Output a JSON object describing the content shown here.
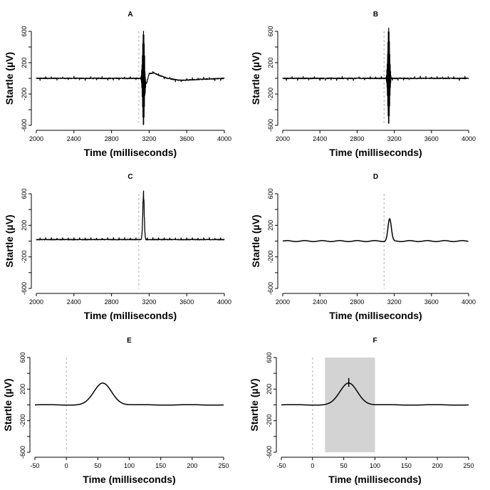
{
  "chart_data": [
    {
      "panel": "A",
      "title": "A",
      "type": "line",
      "xlabel": "Time (milliseconds)",
      "ylabel": "Startle (µV)",
      "xlim": [
        2000,
        4000
      ],
      "ylim": [
        -600,
        600
      ],
      "xticks": [
        "2000",
        "2400",
        "2800",
        "3200",
        "3600",
        "4000"
      ],
      "yticks": [
        "-600",
        "-200",
        "200",
        "600"
      ],
      "stimulus_marker_x": 3090,
      "signal": "raw",
      "burst_center": 3140,
      "burst_peak": 600,
      "burst_trough": -600,
      "post_response": {
        "x": [
          3155,
          3175,
          3200,
          3250,
          3300,
          3400,
          3500,
          3560,
          3700,
          4000
        ],
        "y": [
          -80,
          -60,
          60,
          70,
          40,
          0,
          -20,
          -25,
          -15,
          0
        ]
      }
    },
    {
      "panel": "B",
      "title": "B",
      "type": "line",
      "xlabel": "Time (milliseconds)",
      "ylabel": "Startle (µV)",
      "xlim": [
        2000,
        4000
      ],
      "ylim": [
        -600,
        600
      ],
      "xticks": [
        "2000",
        "2400",
        "2800",
        "3200",
        "3600",
        "4000"
      ],
      "yticks": [
        "-600",
        "-200",
        "200",
        "600"
      ],
      "stimulus_marker_x": 3090,
      "signal": "high-pass filtered",
      "burst_center": 3140,
      "burst_peak": 640,
      "burst_trough": -580
    },
    {
      "panel": "C",
      "title": "C",
      "type": "line",
      "xlabel": "Time (milliseconds)",
      "ylabel": "Startle (µV)",
      "xlim": [
        2000,
        4000
      ],
      "ylim": [
        -600,
        600
      ],
      "xticks": [
        "2000",
        "2400",
        "2800",
        "3200",
        "3600",
        "4000"
      ],
      "yticks": [
        "-600",
        "-200",
        "200",
        "600"
      ],
      "stimulus_marker_x": 3090,
      "signal": "rectified",
      "burst_center": 3140,
      "burst_peak": 620
    },
    {
      "panel": "D",
      "title": "D",
      "type": "line",
      "xlabel": "Time (milliseconds)",
      "ylabel": "Startle (µV)",
      "xlim": [
        2000,
        4000
      ],
      "ylim": [
        -600,
        600
      ],
      "xticks": [
        "2000",
        "2400",
        "2800",
        "3200",
        "3600",
        "4000"
      ],
      "yticks": [
        "-600",
        "-200",
        "200",
        "600"
      ],
      "stimulus_marker_x": 3090,
      "signal": "smoothed",
      "peak": {
        "x": 3150,
        "y": 280,
        "width": 18
      }
    },
    {
      "panel": "E",
      "title": "E",
      "type": "line",
      "xlabel": "Time (milliseconds)",
      "ylabel": "Startle (µV)",
      "xlim": [
        -50,
        250
      ],
      "ylim": [
        -600,
        600
      ],
      "xticks": [
        "-50",
        "0",
        "50",
        "100",
        "150",
        "200",
        "250"
      ],
      "yticks": [
        "-600",
        "-200",
        "200",
        "600"
      ],
      "stimulus_marker_x": 0,
      "signal": "smoothed, stimulus-locked",
      "peak": {
        "x": 58,
        "y": 275,
        "width": 14
      }
    },
    {
      "panel": "F",
      "title": "F",
      "type": "line",
      "xlabel": "Time (milliseconds)",
      "ylabel": "Startle (µV)",
      "xlim": [
        -50,
        250
      ],
      "ylim": [
        -600,
        600
      ],
      "xticks": [
        "-50",
        "0",
        "50",
        "100",
        "150",
        "200",
        "250"
      ],
      "yticks": [
        "-600",
        "-200",
        "200",
        "600"
      ],
      "stimulus_marker_x": 0,
      "signal": "smoothed, scoring window",
      "peak": {
        "x": 58,
        "y": 275,
        "width": 14
      },
      "scoring_window": [
        20,
        100
      ],
      "peak_marker": {
        "x": 58,
        "y_low": 230,
        "y_high": 340
      }
    }
  ]
}
